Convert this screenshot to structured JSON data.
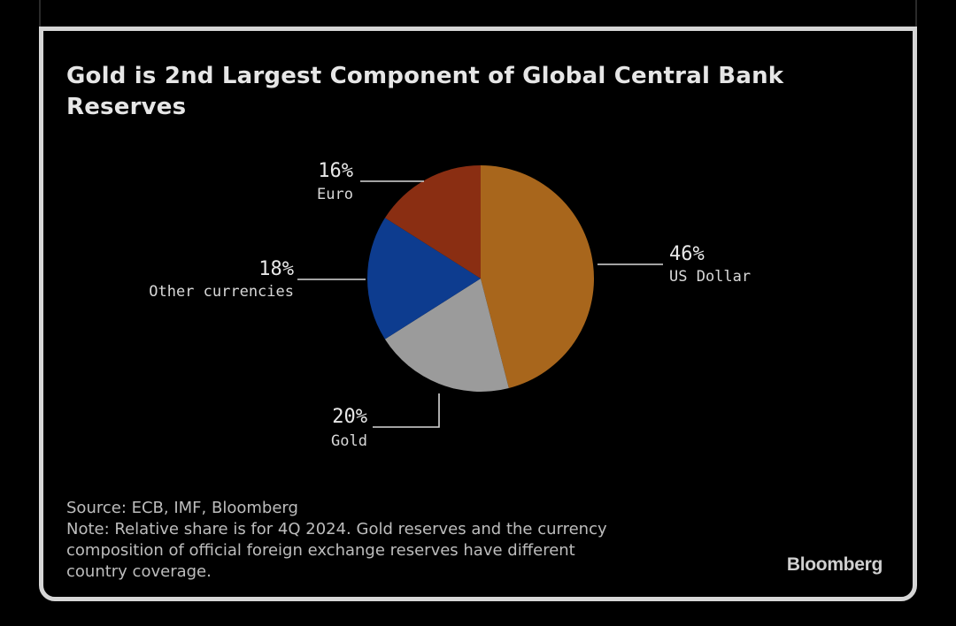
{
  "chart_data": {
    "type": "pie",
    "title": "Gold is 2nd Largest Component of Global Central Bank Reserves",
    "slices": [
      {
        "label": "US Dollar",
        "value": 46,
        "value_label": "46%",
        "color": "#a8661c"
      },
      {
        "label": "Gold",
        "value": 20,
        "value_label": "20%",
        "color": "#9b9b9b"
      },
      {
        "label": "Other currencies",
        "value": 18,
        "value_label": "18%",
        "color": "#0d3c8f"
      },
      {
        "label": "Euro",
        "value": 16,
        "value_label": "16%",
        "color": "#8a2e12"
      }
    ]
  },
  "footer": {
    "source": "Source: ECB, IMF, Bloomberg",
    "note_line1": "Note: Relative share is for 4Q 2024. Gold reserves and the currency",
    "note_line2": "composition of official foreign exchange reserves have different",
    "note_line3": "country coverage.",
    "logo": "Bloomberg"
  }
}
